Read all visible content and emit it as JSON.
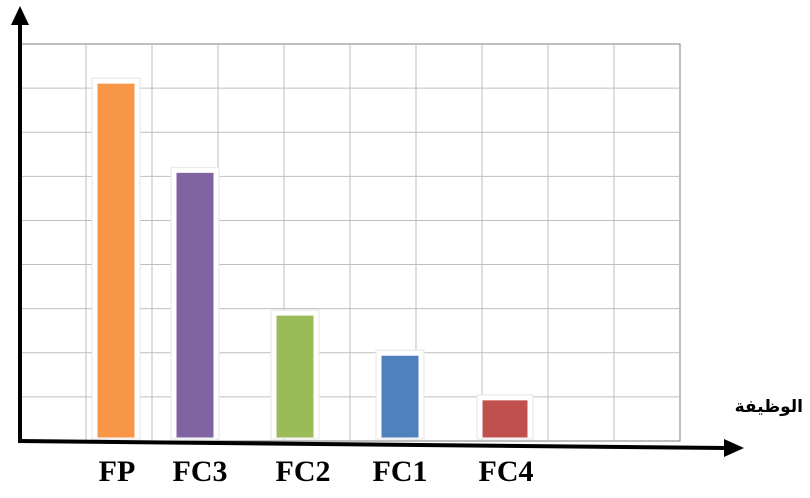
{
  "chart_data": {
    "type": "bar",
    "title": "",
    "xlabel": "الوظيفة",
    "ylabel": "",
    "categories": [
      "FP",
      "FC3",
      "FC2",
      "FC1",
      "FC4"
    ],
    "values": [
      8,
      6,
      2.8,
      1.9,
      0.9
    ],
    "ylim": [
      0,
      8.9
    ],
    "grid": true,
    "legend": "none",
    "colors": [
      "#f79646",
      "#8064a2",
      "#9bbb59",
      "#4f81bd",
      "#c0504d"
    ]
  }
}
